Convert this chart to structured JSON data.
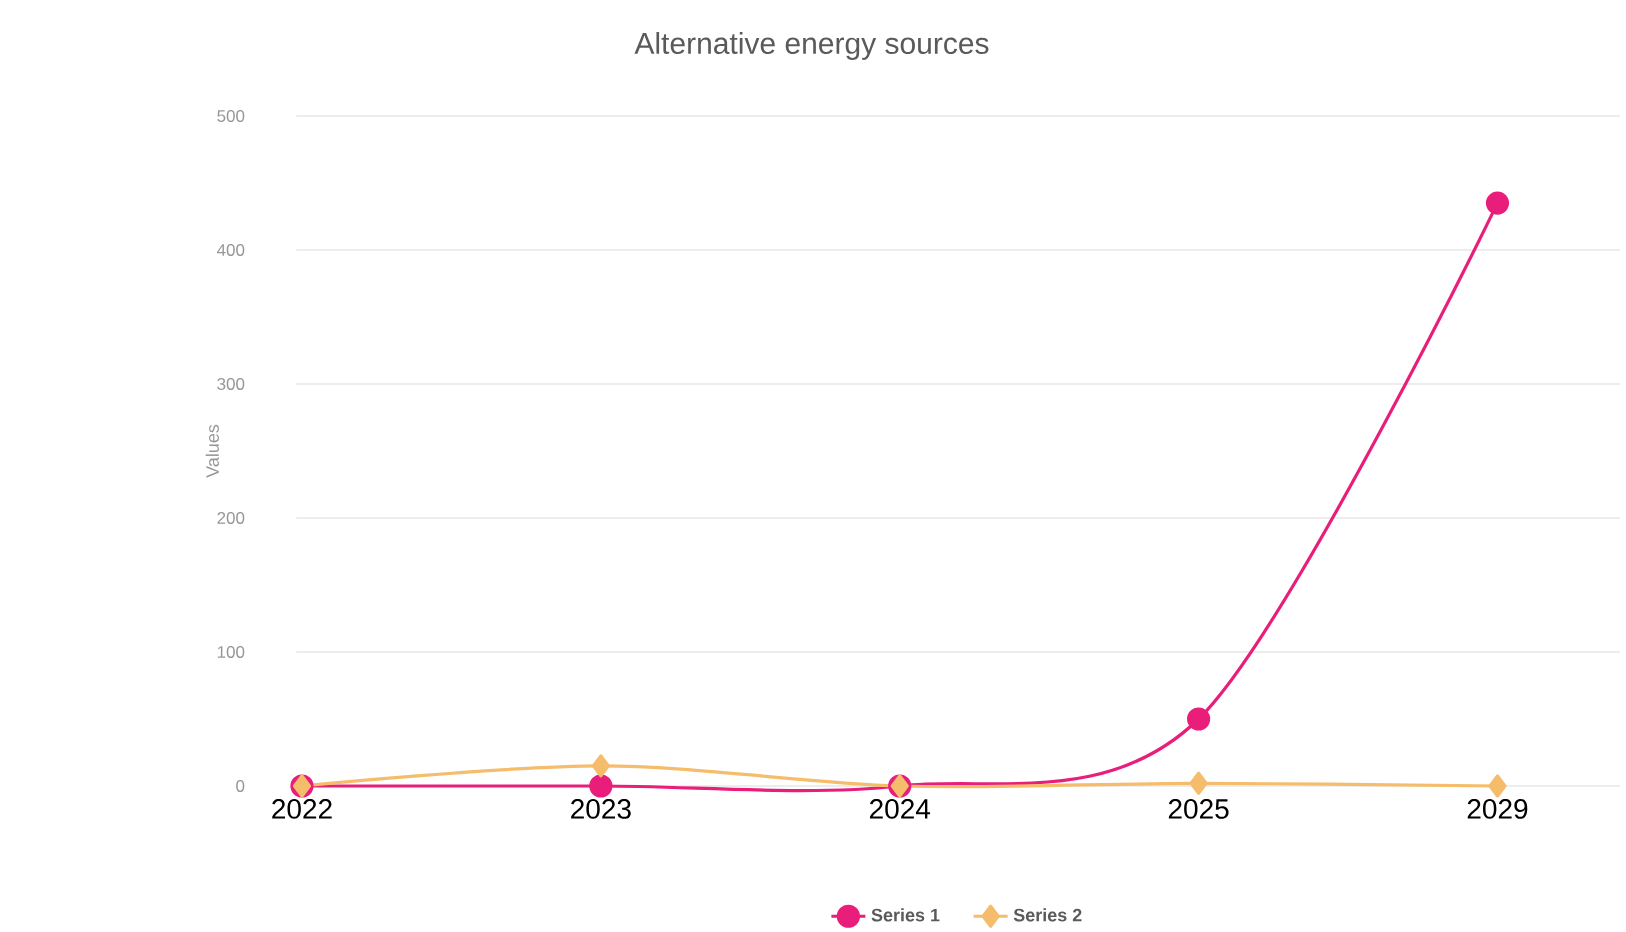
{
  "chart_data": {
    "type": "line",
    "title": "Alternative energy sources",
    "ylabel": "Values",
    "categories": [
      "2022",
      "2023",
      "2024",
      "2025",
      "2029"
    ],
    "series": [
      {
        "name": "Series 1",
        "color": "#e91e7a",
        "marker": "circle",
        "values": [
          0,
          0,
          0,
          50,
          435
        ]
      },
      {
        "name": "Series 2",
        "color": "#f5bd6b",
        "marker": "diamond",
        "values": [
          0,
          15,
          0,
          2,
          0
        ]
      }
    ],
    "ylim": [
      0,
      500
    ],
    "yticks": [
      0,
      100,
      200,
      300,
      400,
      500
    ],
    "grid": "y",
    "legend": "bottom"
  }
}
